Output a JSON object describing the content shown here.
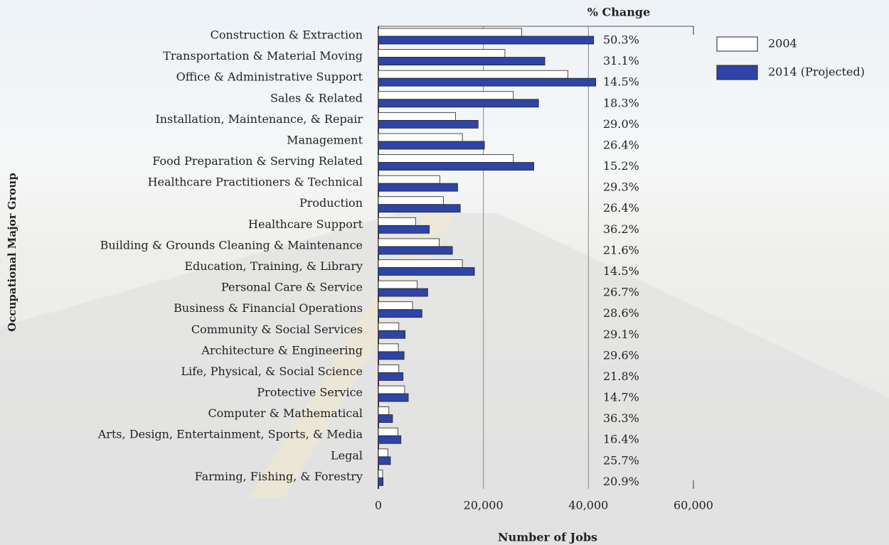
{
  "chart_data": {
    "type": "hbar",
    "xlabel": "Number of Jobs",
    "ylabel": "Occupational Major Group",
    "categories": [
      "Construction & Extraction",
      "Transportation & Material Moving",
      "Office & Administrative Support",
      "Sales & Related",
      "Installation, Maintenance, & Repair",
      "Management",
      "Food Preparation & Serving Related",
      "Healthcare Practitioners & Technical",
      "Production",
      "Healthcare Support",
      "Building & Grounds Cleaning & Maintenance",
      "Education, Training, & Library",
      "Personal Care & Service",
      "Business & Financial Operations",
      "Community & Social Services",
      "Architecture & Engineering",
      "Life, Physical, & Social Science",
      "Protective Service",
      "Computer & Mathematical",
      "Arts, Design, Entertainment, Sports, & Media",
      "Legal",
      "Farming, Fishing, & Forestry"
    ],
    "series": [
      {
        "name": "2004",
        "color": "#ffffff",
        "values": [
          27.3,
          24.1,
          36.1,
          25.7,
          14.7,
          16.0,
          25.7,
          11.7,
          12.4,
          7.1,
          11.6,
          16.0,
          7.4,
          6.5,
          3.9,
          3.8,
          3.9,
          5.0,
          2.0,
          3.7,
          1.8,
          0.8
        ]
      },
      {
        "name": "2014 (Projected)",
        "color": "#2e44a6",
        "values": [
          41.0,
          31.7,
          41.4,
          30.5,
          19.0,
          20.2,
          29.6,
          15.1,
          15.6,
          9.7,
          14.1,
          18.3,
          9.4,
          8.3,
          5.1,
          4.9,
          4.7,
          5.7,
          2.7,
          4.3,
          2.3,
          0.9
        ]
      }
    ],
    "annotation_title": "% Change",
    "annotations": [
      "50.3%",
      "31.1%",
      "14.5%",
      "18.3%",
      "29.0%",
      "26.4%",
      "15.2%",
      "29.3%",
      "26.4%",
      "36.2%",
      "21.6%",
      "14.5%",
      "26.7%",
      "28.6%",
      "29.1%",
      "29.6%",
      "21.8%",
      "14.7%",
      "36.3%",
      "16.4%",
      "25.7%",
      "20.9%"
    ],
    "xlim": [
      0,
      60
    ],
    "xticks": [
      {
        "value": 0,
        "label": "0"
      },
      {
        "value": 20,
        "label": "20,000"
      },
      {
        "value": 40,
        "label": "40,000"
      },
      {
        "value": 60,
        "label": "60,000"
      }
    ],
    "grid": true,
    "legend": "top-right"
  }
}
